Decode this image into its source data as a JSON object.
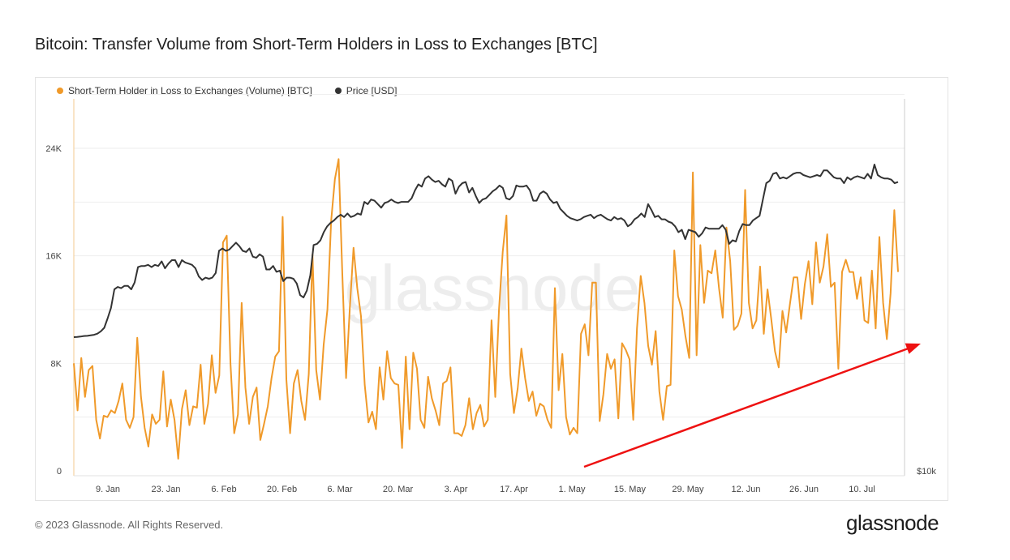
{
  "title": "Bitcoin: Transfer Volume from Short-Term Holders in Loss to Exchanges [BTC]",
  "footer": "© 2023 Glassnode. All Rights Reserved.",
  "brand": "glassnode",
  "watermark": "glassnode",
  "colors": {
    "volume": "#f09a2a",
    "price": "#333333",
    "arrow": "#ee1111",
    "grid": "#eeeeee",
    "axis_text": "#444444"
  },
  "chart_data": {
    "type": "line",
    "legend": [
      {
        "name": "Short-Term Holder in Loss to Exchanges (Volume) [BTC]",
        "color": "#f09a2a"
      },
      {
        "name": "Price [USD]",
        "color": "#333333"
      }
    ],
    "legend_position": "top-left",
    "x_tick_labels": [
      "9. Jan",
      "23. Jan",
      "6. Feb",
      "20. Feb",
      "6. Mar",
      "20. Mar",
      "3. Apr",
      "17. Apr",
      "1. May",
      "15. May",
      "29. May",
      "12. Jun",
      "26. Jun",
      "10. Jul"
    ],
    "y_left": {
      "ticks": [
        "0",
        "8K",
        "16K",
        "24K"
      ],
      "min": 0,
      "max": 28000
    },
    "y_right": {
      "ticks": [
        "$10k"
      ],
      "scale": "log"
    },
    "grid": true,
    "series": [
      {
        "name": "Short-Term Holder in Loss to Exchanges (Volume) [BTC]",
        "values": [
          8000,
          4500,
          8400,
          5500,
          7500,
          7800,
          3800,
          2400,
          4100,
          4000,
          4500,
          4300,
          5200,
          6500,
          3800,
          3200,
          4000,
          9900,
          5500,
          3200,
          1800,
          4200,
          3500,
          3800,
          7400,
          3300,
          5300,
          3800,
          900,
          4600,
          6000,
          3400,
          4800,
          4700,
          7900,
          3500,
          5000,
          8600,
          5800,
          7100,
          17000,
          17500,
          8000,
          2800,
          4200,
          12500,
          6200,
          3500,
          5500,
          6200,
          2300,
          3500,
          4800,
          6900,
          8500,
          8900,
          18900,
          6800,
          2800,
          6500,
          7500,
          5200,
          3800,
          7200,
          16100,
          7500,
          5300,
          9400,
          12000,
          18600,
          21700,
          23200,
          14600,
          6900,
          12100,
          16600,
          13600,
          11500,
          6400,
          3600,
          4400,
          3100,
          7700,
          5300,
          8900,
          6900,
          6500,
          6400,
          1700,
          8500,
          3100,
          8800,
          7600,
          3800,
          3200,
          7000,
          5400,
          4500,
          3400,
          6500,
          6700,
          7700,
          2800,
          2800,
          2600,
          3400,
          5400,
          3100,
          4300,
          4900,
          3300,
          3800,
          11200,
          5500,
          12000,
          16300,
          19000,
          7200,
          4300,
          6100,
          9100,
          6900,
          5200,
          5900,
          4100,
          5000,
          4800,
          3800,
          3200,
          13600,
          6000,
          8700,
          4000,
          2700,
          3200,
          2800,
          10200,
          10900,
          8600,
          14000,
          14000,
          3700,
          5700,
          8700,
          7600,
          8300,
          3900,
          9500,
          9000,
          8300,
          3800,
          10600,
          14500,
          12500,
          9300,
          7900,
          10400,
          5900,
          3800,
          6300,
          6400,
          16400,
          13000,
          12000,
          10000,
          8400,
          22200,
          8600,
          16800,
          12500,
          14900,
          14700,
          16400,
          13600,
          11400,
          18100,
          15600,
          10500,
          10800,
          11700,
          20900,
          12500,
          10600,
          11200,
          15200,
          10200,
          13500,
          11300,
          8900,
          7700,
          11900,
          10300,
          12400,
          14400,
          14400,
          11300,
          13900,
          15600,
          12400,
          17000,
          14000,
          15200,
          17600,
          13700,
          14000,
          7600,
          14800,
          15700,
          14800,
          14800,
          12800,
          14400,
          11200,
          11000,
          14900,
          10600,
          17400,
          12500,
          9800,
          13200,
          19400,
          14800
        ]
      },
      {
        "name": "Price [USD]",
        "values": [
          16700,
          16720,
          16750,
          16800,
          16810,
          16850,
          16900,
          17000,
          17200,
          17500,
          18300,
          19200,
          20800,
          21000,
          20900,
          21100,
          21100,
          20800,
          21400,
          22700,
          22800,
          22800,
          22900,
          22700,
          22900,
          22800,
          23200,
          22600,
          23000,
          23300,
          23300,
          22700,
          23300,
          23100,
          23000,
          22900,
          22600,
          21900,
          21600,
          21800,
          21700,
          21800,
          22200,
          24100,
          24300,
          24100,
          24200,
          24500,
          24800,
          24500,
          24100,
          24000,
          24300,
          23600,
          23500,
          23800,
          23600,
          22500,
          22500,
          22800,
          22300,
          22400,
          21500,
          21800,
          21800,
          21700,
          21300,
          20300,
          20100,
          20700,
          22000,
          24600,
          24700,
          25000,
          25700,
          26200,
          26500,
          26700,
          27000,
          27200,
          27000,
          27300,
          27000,
          27100,
          27300,
          27200,
          28300,
          28100,
          28500,
          28400,
          28100,
          27800,
          28200,
          28300,
          28500,
          28300,
          28200,
          28300,
          28300,
          28300,
          28600,
          29300,
          29800,
          29600,
          30300,
          30500,
          30200,
          30000,
          30100,
          29800,
          29600,
          30300,
          30100,
          29000,
          29600,
          29900,
          30000,
          29100,
          29500,
          28800,
          28200,
          28500,
          28600,
          28900,
          29200,
          29400,
          29700,
          29500,
          28600,
          28500,
          28800,
          29700,
          29600,
          29600,
          29700,
          29300,
          28400,
          28400,
          29000,
          29200,
          29000,
          28500,
          28200,
          28300,
          27700,
          27400,
          27100,
          26900,
          26800,
          26700,
          26800,
          27000,
          27100,
          27200,
          26900,
          27100,
          27200,
          27000,
          26800,
          26700,
          27000,
          26800,
          26900,
          26700,
          26200,
          26400,
          26800,
          27000,
          27300,
          27000,
          28100,
          27600,
          27000,
          27100,
          26800,
          26800,
          26600,
          26500,
          26200,
          25700,
          25900,
          25100,
          25900,
          25800,
          25700,
          25300,
          25600,
          26100,
          26000,
          26000,
          26000,
          26000,
          26300,
          25900,
          24700,
          25000,
          24900,
          25800,
          26400,
          26300,
          26300,
          26700,
          26900,
          27100,
          28500,
          29900,
          30100,
          30700,
          30800,
          30300,
          30400,
          30300,
          30500,
          30700,
          30800,
          30800,
          30600,
          30500,
          30400,
          30500,
          30600,
          30500,
          31000,
          31000,
          30700,
          30400,
          30300,
          30300,
          29900,
          30400,
          30200,
          30400,
          30500,
          30400,
          30300,
          30700,
          30300,
          31500,
          30600,
          30400,
          30300,
          30300,
          30200,
          29900,
          30000
        ]
      }
    ],
    "annotations": [
      {
        "type": "arrow",
        "color": "#ee1111",
        "direction": "upward trend"
      }
    ]
  }
}
